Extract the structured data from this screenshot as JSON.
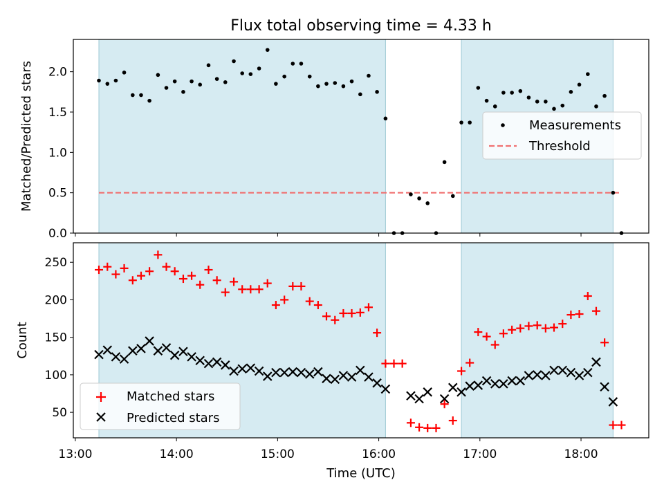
{
  "chart_data": [
    {
      "type": "scatter",
      "title": "Flux total observing time = 4.33 h",
      "xlabel": "",
      "ylabel": "Matched/Predicted stars",
      "xlim": [
        12.98,
        18.67
      ],
      "ylim": [
        0,
        2.4
      ],
      "y_ticks": [
        0.0,
        0.5,
        1.0,
        1.5,
        2.0
      ],
      "y_tick_labels": [
        "0.0",
        "0.5",
        "1.0",
        "1.5",
        "2.0"
      ],
      "shaded_intervals": [
        [
          13.233,
          16.067
        ],
        [
          16.817,
          18.317
        ]
      ],
      "legend": {
        "placement": "center-right",
        "entries": [
          "Measurements",
          "Threshold"
        ]
      },
      "series": [
        {
          "name": "Measurements",
          "marker": "dot",
          "color": "#000000",
          "x": [
            13.233,
            13.317,
            13.4,
            13.483,
            13.567,
            13.65,
            13.733,
            13.817,
            13.9,
            13.983,
            14.067,
            14.15,
            14.233,
            14.317,
            14.4,
            14.483,
            14.567,
            14.65,
            14.733,
            14.817,
            14.9,
            14.983,
            15.067,
            15.15,
            15.233,
            15.317,
            15.4,
            15.483,
            15.567,
            15.65,
            15.733,
            15.817,
            15.9,
            15.983,
            16.067,
            16.15,
            16.233,
            16.317,
            16.4,
            16.483,
            16.567,
            16.65,
            16.733,
            16.817,
            16.9,
            16.983,
            17.067,
            17.15,
            17.233,
            17.317,
            17.4,
            17.483,
            17.567,
            17.65,
            17.733,
            17.817,
            17.9,
            17.983,
            18.067,
            18.15,
            18.233,
            18.317,
            18.4
          ],
          "y": [
            1.89,
            1.85,
            1.89,
            1.99,
            1.71,
            1.71,
            1.64,
            1.96,
            1.8,
            1.88,
            1.75,
            1.88,
            1.84,
            2.08,
            1.91,
            1.87,
            2.13,
            1.98,
            1.97,
            2.04,
            2.27,
            1.85,
            1.94,
            2.1,
            2.1,
            1.94,
            1.82,
            1.85,
            1.86,
            1.82,
            1.88,
            1.72,
            1.95,
            1.75,
            1.42,
            0.0,
            0.0,
            0.48,
            0.43,
            0.37,
            0.0,
            0.88,
            0.46,
            1.37,
            1.37,
            1.8,
            1.64,
            1.57,
            1.74,
            1.74,
            1.76,
            1.68,
            1.63,
            1.63,
            1.54,
            1.58,
            1.75,
            1.84,
            1.97,
            1.57,
            1.7,
            0.5,
            0.0
          ]
        },
        {
          "name": "Threshold",
          "style": "dashed",
          "color": "#f07070",
          "x": [
            13.233,
            18.4
          ],
          "y": [
            0.5,
            0.5
          ]
        }
      ]
    },
    {
      "type": "scatter",
      "xlabel": "Time (UTC)",
      "ylabel": "Count",
      "xlim": [
        12.98,
        18.67
      ],
      "ylim": [
        16,
        276
      ],
      "x_ticks": [
        13,
        14,
        15,
        16,
        17,
        18
      ],
      "x_tick_labels": [
        "13:00",
        "14:00",
        "15:00",
        "16:00",
        "17:00",
        "18:00"
      ],
      "y_ticks": [
        50,
        100,
        150,
        200,
        250
      ],
      "y_tick_labels": [
        "50",
        "100",
        "150",
        "200",
        "250"
      ],
      "shaded_intervals": [
        [
          13.233,
          16.067
        ],
        [
          16.817,
          18.317
        ]
      ],
      "legend": {
        "placement": "lower-left",
        "entries": [
          "Matched stars",
          "Predicted stars"
        ]
      },
      "series": [
        {
          "name": "Matched stars",
          "marker": "plus",
          "color": "#ff0000",
          "x": [
            13.233,
            13.317,
            13.4,
            13.483,
            13.567,
            13.65,
            13.733,
            13.817,
            13.9,
            13.983,
            14.067,
            14.15,
            14.233,
            14.317,
            14.4,
            14.483,
            14.567,
            14.65,
            14.733,
            14.817,
            14.9,
            14.983,
            15.067,
            15.15,
            15.233,
            15.317,
            15.4,
            15.483,
            15.567,
            15.65,
            15.733,
            15.817,
            15.9,
            15.983,
            16.067,
            16.15,
            16.233,
            16.317,
            16.4,
            16.483,
            16.567,
            16.65,
            16.733,
            16.817,
            16.9,
            16.983,
            17.067,
            17.15,
            17.233,
            17.317,
            17.4,
            17.483,
            17.567,
            17.65,
            17.733,
            17.817,
            17.9,
            17.983,
            18.067,
            18.15,
            18.233,
            18.317,
            18.4
          ],
          "y": [
            240,
            244,
            234,
            242,
            226,
            232,
            238,
            260,
            244,
            238,
            228,
            232,
            220,
            240,
            226,
            210,
            224,
            214,
            214,
            214,
            222,
            193,
            200,
            218,
            218,
            198,
            193,
            178,
            173,
            182,
            182,
            183,
            190,
            156,
            115,
            115,
            115,
            36,
            30,
            29,
            29,
            61,
            39,
            105,
            116,
            157,
            151,
            140,
            155,
            160,
            162,
            165,
            166,
            162,
            163,
            168,
            180,
            181,
            205,
            185,
            143,
            33,
            33
          ]
        },
        {
          "name": "Predicted stars",
          "marker": "x",
          "color": "#000000",
          "x": [
            13.233,
            13.317,
            13.4,
            13.483,
            13.567,
            13.65,
            13.733,
            13.817,
            13.9,
            13.983,
            14.067,
            14.15,
            14.233,
            14.317,
            14.4,
            14.483,
            14.567,
            14.65,
            14.733,
            14.817,
            14.9,
            14.983,
            15.067,
            15.15,
            15.233,
            15.317,
            15.4,
            15.483,
            15.567,
            15.65,
            15.733,
            15.817,
            15.9,
            15.983,
            16.067,
            16.317,
            16.4,
            16.483,
            16.65,
            16.733,
            16.817,
            16.9,
            16.983,
            17.067,
            17.15,
            17.233,
            17.317,
            17.4,
            17.483,
            17.567,
            17.65,
            17.733,
            17.817,
            17.9,
            17.983,
            18.067,
            18.15,
            18.233,
            18.317
          ],
          "y": [
            127,
            133,
            124,
            121,
            132,
            135,
            145,
            132,
            136,
            126,
            131,
            124,
            119,
            115,
            117,
            113,
            105,
            108,
            109,
            105,
            98,
            103,
            103,
            104,
            103,
            101,
            104,
            95,
            94,
            99,
            97,
            106,
            97,
            89,
            81,
            72,
            68,
            77,
            68,
            83,
            77,
            85,
            86,
            92,
            88,
            88,
            92,
            92,
            99,
            100,
            99,
            106,
            106,
            103,
            99,
            103,
            117,
            84,
            64
          ]
        }
      ]
    }
  ]
}
